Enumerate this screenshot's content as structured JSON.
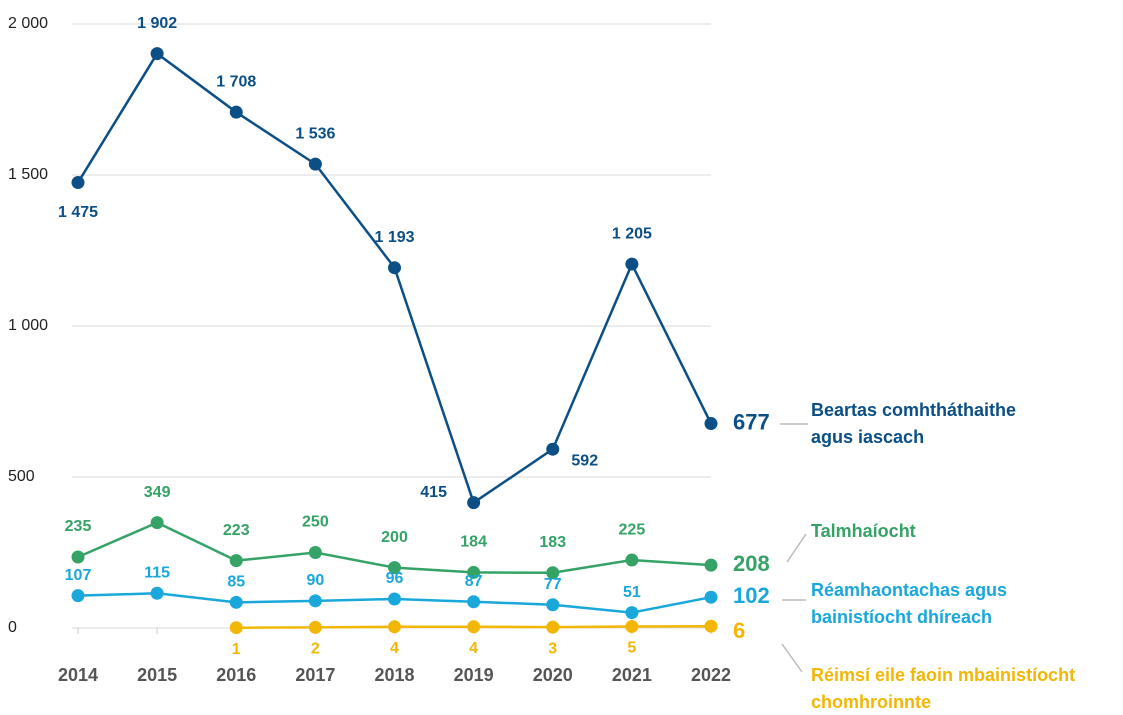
{
  "chart_data": {
    "type": "line",
    "categories": [
      "2014",
      "2015",
      "2016",
      "2017",
      "2018",
      "2019",
      "2020",
      "2021",
      "2022"
    ],
    "ylim": [
      0,
      2000
    ],
    "yticks": [
      0,
      500,
      {
        "value": 1000,
        "label": "1 000"
      },
      {
        "value": 1500,
        "label": "1 500"
      },
      {
        "value": 2000,
        "label": "2 000"
      }
    ],
    "grid": true,
    "series": [
      {
        "name": "Beartas comhtháthaithe agus iascach",
        "color": "#0b4f86",
        "values": [
          1475,
          1902,
          1708,
          1536,
          1193,
          415,
          592,
          1205,
          677
        ],
        "value_labels": [
          "1 475",
          "1 902",
          "1 708",
          "1 536",
          "1 193",
          "415",
          "592",
          "1 205",
          "677"
        ]
      },
      {
        "name": "Talmhaíocht",
        "color": "#35a266",
        "values": [
          235,
          349,
          223,
          250,
          200,
          184,
          183,
          225,
          208
        ]
      },
      {
        "name": "Réamhaontachas agus bainistíocht dhíreach",
        "color": "#19a7dc",
        "values": [
          107,
          115,
          85,
          90,
          96,
          87,
          77,
          51,
          102
        ]
      },
      {
        "name": "Réimsí eile faoin mbainistíocht chomhroinnte",
        "color": "#f2b705",
        "values": [
          null,
          null,
          1,
          2,
          4,
          4,
          3,
          5,
          6
        ]
      }
    ]
  }
}
